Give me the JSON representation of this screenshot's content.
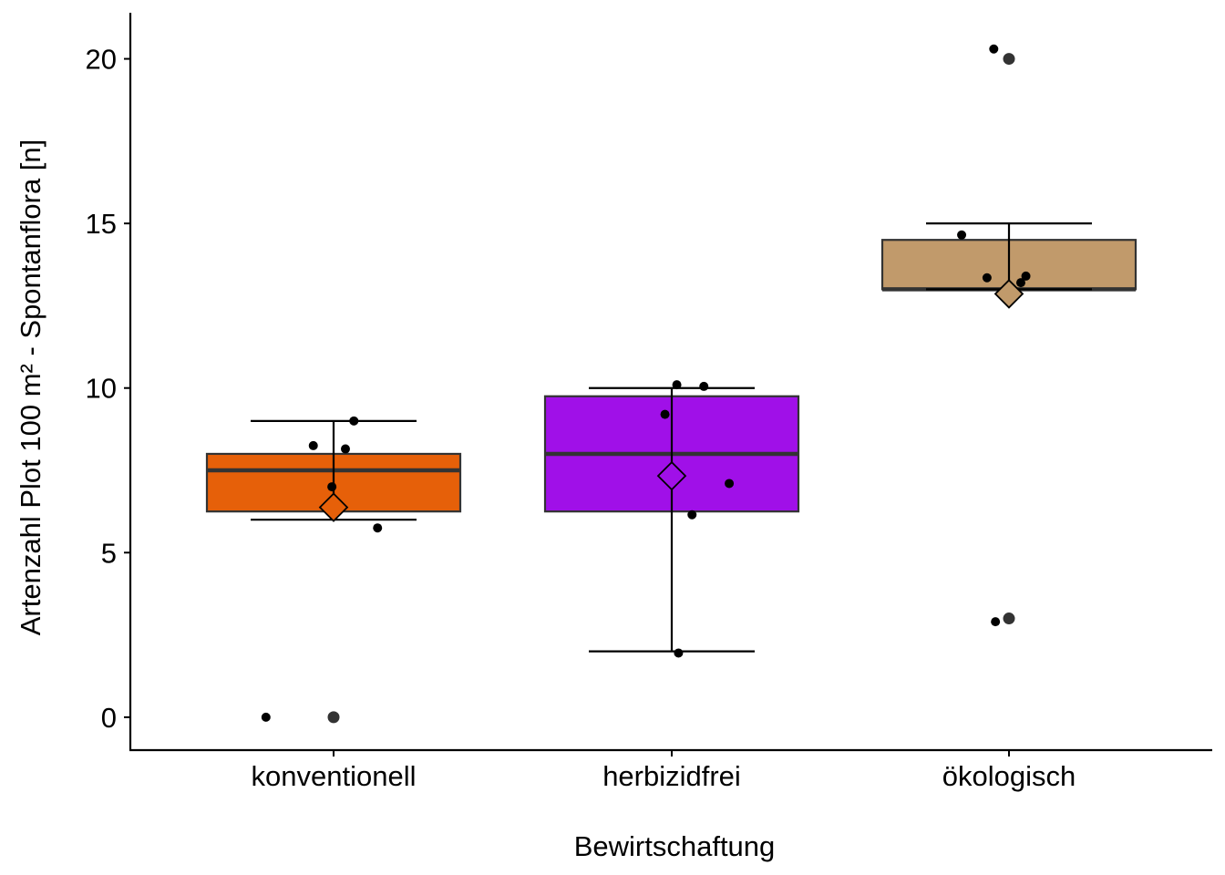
{
  "chart_data": {
    "type": "box",
    "title": "",
    "xlabel": "Bewirtschaftung",
    "ylabel": "Artenzahl Plot 100 m² - Spontanflora [n]",
    "ylim": [
      -1.0,
      21.4
    ],
    "yticks": [
      0,
      5,
      10,
      15,
      20
    ],
    "grid": false,
    "legend": "none",
    "categories": [
      "konventionell",
      "herbizidfrei",
      "ökologisch"
    ],
    "colors": [
      "#E66009",
      "#A010E8",
      "#C19A6B"
    ],
    "boxes": [
      {
        "q1": 6.25,
        "median": 7.5,
        "q3": 8.0,
        "mean": 6.375,
        "err_low": 6.0,
        "err_high": 9.0
      },
      {
        "q1": 6.25,
        "median": 8.0,
        "q3": 9.75,
        "mean": 7.33,
        "err_low": 2.0,
        "err_high": 10.0
      },
      {
        "q1": 13.0,
        "median": 13.0,
        "q3": 14.5,
        "mean": 12.86,
        "err_low": 13.0,
        "err_high": 15.0
      }
    ],
    "outliers": [
      {
        "category": 0,
        "y": 0
      },
      {
        "category": 2,
        "y": 20
      },
      {
        "category": 2,
        "y": 3
      }
    ],
    "points": [
      {
        "category": 0,
        "x_offset": -0.2,
        "y": 0
      },
      {
        "category": 0,
        "x_offset": -0.06,
        "y": 8.25
      },
      {
        "category": 0,
        "x_offset": -0.005,
        "y": 7.0
      },
      {
        "category": 0,
        "x_offset": 0.035,
        "y": 8.15
      },
      {
        "category": 0,
        "x_offset": 0.06,
        "y": 9.0
      },
      {
        "category": 0,
        "x_offset": 0.13,
        "y": 5.75
      },
      {
        "category": 1,
        "x_offset": -0.02,
        "y": 9.2
      },
      {
        "category": 1,
        "x_offset": 0.015,
        "y": 10.1
      },
      {
        "category": 1,
        "x_offset": 0.02,
        "y": 1.95
      },
      {
        "category": 1,
        "x_offset": 0.06,
        "y": 6.15
      },
      {
        "category": 1,
        "x_offset": 0.095,
        "y": 10.05
      },
      {
        "category": 1,
        "x_offset": 0.17,
        "y": 7.1
      },
      {
        "category": 2,
        "x_offset": -0.14,
        "y": 14.65
      },
      {
        "category": 2,
        "x_offset": -0.065,
        "y": 13.35
      },
      {
        "category": 2,
        "x_offset": -0.045,
        "y": 20.3
      },
      {
        "category": 2,
        "x_offset": -0.04,
        "y": 2.9
      },
      {
        "category": 2,
        "x_offset": 0.035,
        "y": 13.2
      },
      {
        "category": 2,
        "x_offset": 0.05,
        "y": 13.4
      }
    ]
  }
}
